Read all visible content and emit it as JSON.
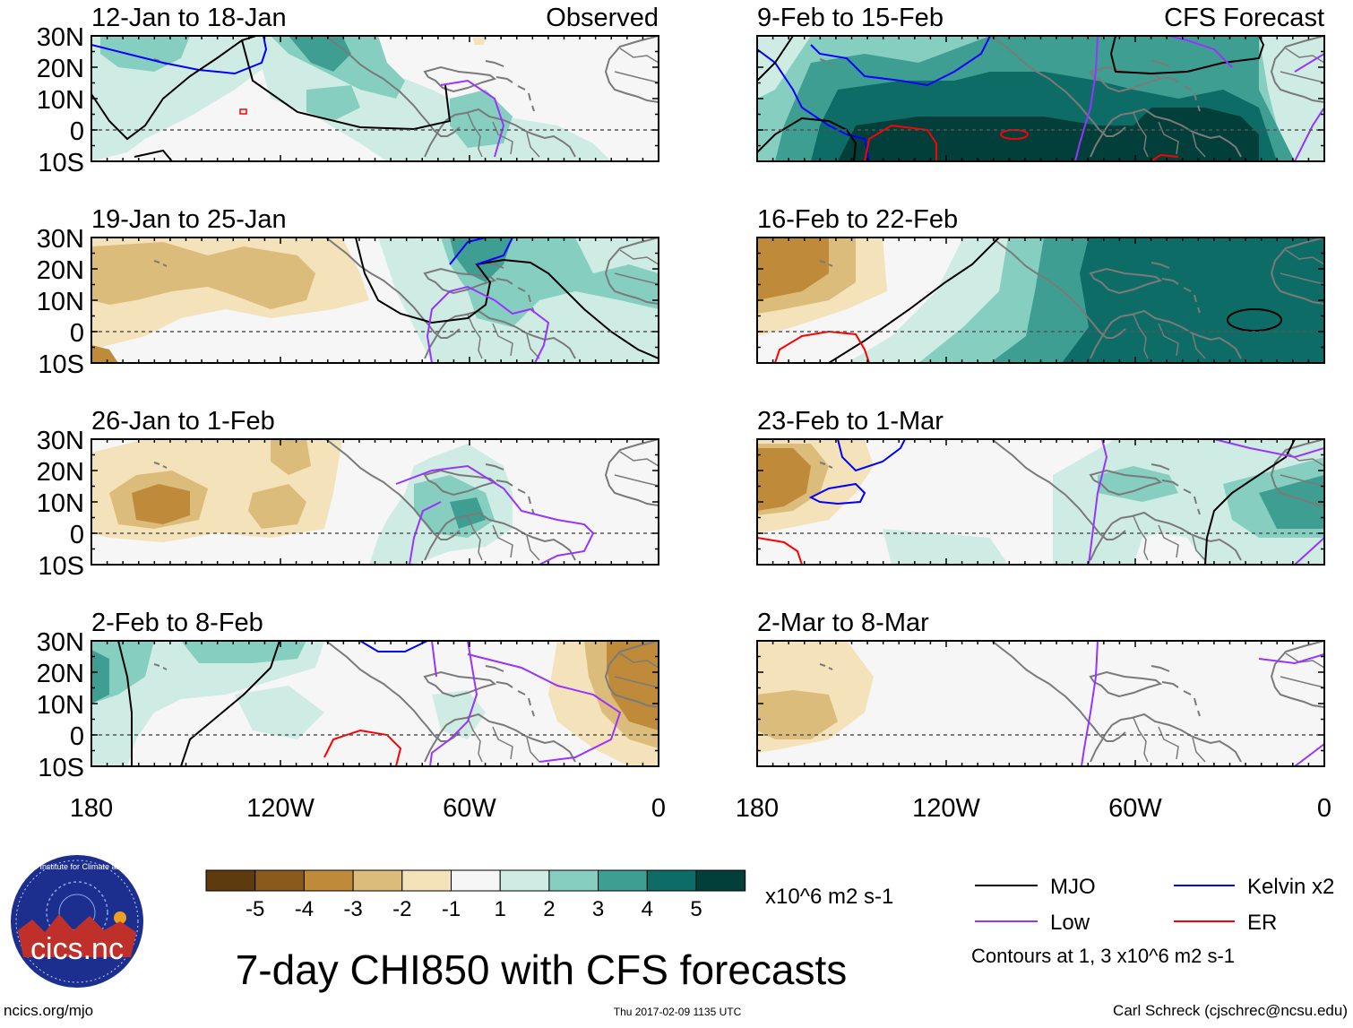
{
  "panels": [
    {
      "id": "p1",
      "period": "12-Jan to 18-Jan",
      "tag": "Observed"
    },
    {
      "id": "p2",
      "period": "19-Jan to 25-Jan",
      "tag": ""
    },
    {
      "id": "p3",
      "period": "26-Jan to 1-Feb",
      "tag": ""
    },
    {
      "id": "p4",
      "period": "2-Feb to 8-Feb",
      "tag": ""
    },
    {
      "id": "p5",
      "period": "9-Feb to 15-Feb",
      "tag": "CFS Forecast"
    },
    {
      "id": "p6",
      "period": "16-Feb to 22-Feb",
      "tag": ""
    },
    {
      "id": "p7",
      "period": "23-Feb to 1-Mar",
      "tag": ""
    },
    {
      "id": "p8",
      "period": "2-Mar to 8-Mar",
      "tag": ""
    }
  ],
  "lat_labels": [
    "30N",
    "20N",
    "10N",
    "0",
    "10S"
  ],
  "lon_labels": [
    "180",
    "120W",
    "60W",
    "0"
  ],
  "colorbar": {
    "colors": [
      "#5e3a0f",
      "#8a5a1c",
      "#bf8a3a",
      "#dcbc7a",
      "#f3e2ba",
      "#f6f6f6",
      "#cfece4",
      "#86cfc0",
      "#3f9e92",
      "#0d6d66",
      "#033f3a"
    ],
    "tick_labels": [
      "-5",
      "-4",
      "-3",
      "-2",
      "-1",
      "1",
      "2",
      "3",
      "4",
      "5"
    ],
    "units": "x10^6 m2 s-1"
  },
  "legend": {
    "items": [
      {
        "label": "MJO",
        "color": "#000000"
      },
      {
        "label": "Kelvin x2",
        "color": "#0000ff"
      },
      {
        "label": "Low",
        "color": "#9933ff"
      },
      {
        "label": "ER",
        "color": "#ff0000"
      }
    ],
    "note": "Contours at 1, 3 x10^6 m2 s-1"
  },
  "logo_text": "cics.nc",
  "logo_ring_text": "Cooperative Institute for Climate and Satellites",
  "title": "7-day CHI850 with CFS forecasts",
  "footer": {
    "left": "ncics.org/mjo",
    "center": "Thu 2017-02-09 1135 UTC",
    "right": "Carl Schreck (cjschrec@ncsu.edu)"
  }
}
